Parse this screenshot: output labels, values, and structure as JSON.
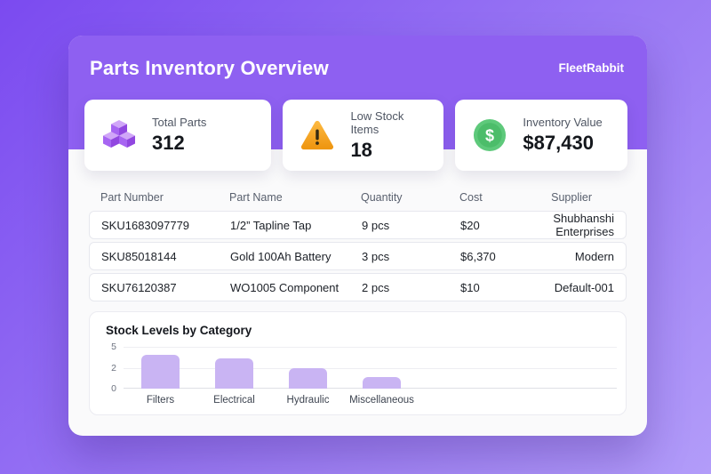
{
  "header": {
    "title": "Parts Inventory Overview",
    "brand": "FleetRabbit"
  },
  "stats": [
    {
      "icon": "boxes-icon",
      "label": "Total Parts",
      "value": "312"
    },
    {
      "icon": "warning-icon",
      "label": "Low Stock Items",
      "value": "18"
    },
    {
      "icon": "dollar-icon",
      "label": "Inventory Value",
      "value": "$87,430"
    }
  ],
  "table": {
    "columns": [
      "Part Number",
      "Part Name",
      "Quantity",
      "Cost",
      "Supplier"
    ],
    "rows": [
      [
        "SKU1683097779",
        "1/2” Tapline Tap",
        "9 pcs",
        "$20",
        "Shubhanshi Enterprises"
      ],
      [
        "SKU85018144",
        "Gold 100Ah Battery",
        "3 pcs",
        "$6,370",
        "Modern"
      ],
      [
        "SKU76120387",
        "WO1005 Component",
        "2 pcs",
        "$10",
        "Default-001"
      ]
    ]
  },
  "chart_data": {
    "type": "bar",
    "title": "Stock Levels by Category",
    "categories": [
      "Filters",
      "Electrical",
      "Hydraulic",
      "Miscellaneous"
    ],
    "values": [
      4,
      3.6,
      2.5,
      1.4
    ],
    "ylim": [
      0,
      5
    ],
    "ytick_labels": [
      "5",
      "2",
      "0"
    ],
    "xlabel": "",
    "ylabel": "",
    "grid": true,
    "legend": false,
    "bar_color": "#c9b4f3"
  },
  "colors": {
    "background_gradient_start": "#7b4af0",
    "background_gradient_end": "#b29cf9",
    "header_purple": "#8e60f1",
    "panel_bg": "#fafafb",
    "card_bg": "#ffffff",
    "bar_fill": "#c9b4f3",
    "warning_amber": "#f5a41f",
    "dollar_green": "#5ec97b",
    "icon_purple": "#a765f2",
    "text_dark": "#14171c",
    "text_gray": "#59606e"
  }
}
